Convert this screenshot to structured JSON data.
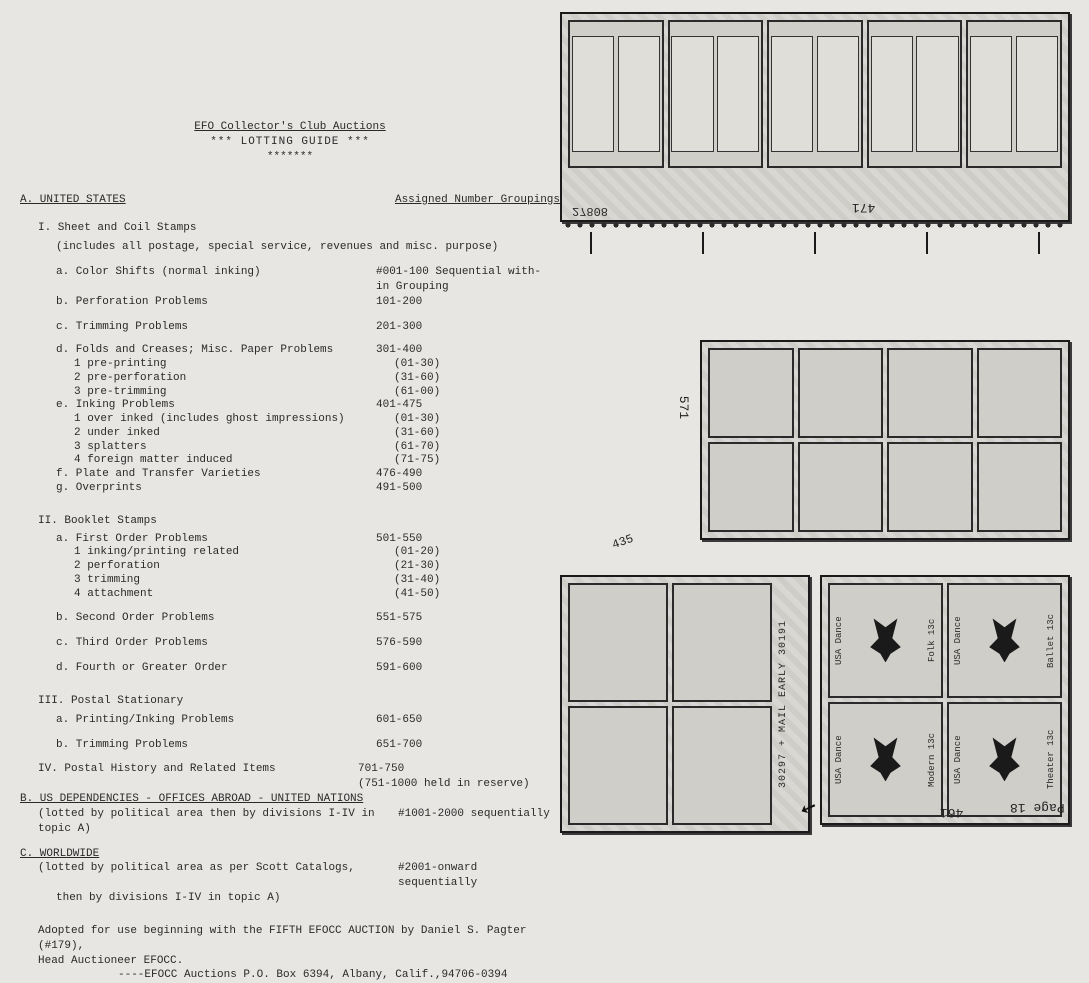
{
  "header": {
    "title1": "EFO Collector's Club Auctions",
    "title2": "*** LOTTING GUIDE ***",
    "stars": "*******"
  },
  "col_left_hdr": "A. UNITED STATES",
  "col_right_hdr": "Assigned Number Groupings",
  "sec_I": {
    "head": "I. Sheet and Coil Stamps",
    "sub": "(includes all postage, special service, revenues and misc. purpose)",
    "a_lbl": "a. Color Shifts (normal inking)",
    "a_num": "#001-100 Sequential with-",
    "a_cont": "in Grouping",
    "b_lbl": "b. Perforation Problems",
    "b_num": "101-200",
    "c_lbl": "c. Trimming Problems",
    "c_num": "201-300",
    "d_lbl": "d. Folds and Creases; Misc. Paper Problems",
    "d_num": "301-400",
    "d_list": [
      {
        "lbl": "1 pre-printing",
        "num": "(01-30)"
      },
      {
        "lbl": "2 pre-perforation",
        "num": "(31-60)"
      },
      {
        "lbl": "3 pre-trimming",
        "num": "(61-00)"
      }
    ],
    "e_lbl": "e. Inking Problems",
    "e_num": "401-475",
    "e_list": [
      {
        "lbl": "1 over inked (includes ghost impressions)",
        "num": "(01-30)"
      },
      {
        "lbl": "2 under inked",
        "num": "(31-60)"
      },
      {
        "lbl": "3 splatters",
        "num": "(61-70)"
      },
      {
        "lbl": "4 foreign matter induced",
        "num": "(71-75)"
      }
    ],
    "f_lbl": "f. Plate and Transfer Varieties",
    "f_num": "476-490",
    "g_lbl": "g. Overprints",
    "g_num": "491-500"
  },
  "sec_II": {
    "head": "II. Booklet Stamps",
    "a_lbl": "a. First Order Problems",
    "a_num": "501-550",
    "a_list": [
      {
        "lbl": "1 inking/printing related",
        "num": "(01-20)"
      },
      {
        "lbl": "2 perforation",
        "num": "(21-30)"
      },
      {
        "lbl": "3 trimming",
        "num": "(31-40)"
      },
      {
        "lbl": "4 attachment",
        "num": "(41-50)"
      }
    ],
    "b_lbl": "b. Second Order Problems",
    "b_num": "551-575",
    "c_lbl": "c. Third Order Problems",
    "c_num": "576-590",
    "d_lbl": "d. Fourth or Greater Order",
    "d_num": "591-600"
  },
  "sec_III": {
    "head": "III. Postal Stationary",
    "a_lbl": "a. Printing/Inking Problems",
    "a_num": "601-650",
    "b_lbl": "b. Trimming Problems",
    "b_num": "651-700"
  },
  "sec_IV": {
    "head": "IV. Postal History and Related Items",
    "num": "701-750",
    "reserve": "(751-1000 held in reserve)"
  },
  "sec_B": {
    "head": "B. US DEPENDENCIES - OFFICES ABROAD - UNITED NATIONS",
    "sub": "(lotted by political area then by divisions I-IV in topic A)",
    "num": "#1001-2000 sequentially"
  },
  "sec_C": {
    "head": "C. WORLDWIDE",
    "sub1": "(lotted by political area as per Scott Catalogs,",
    "sub2": "then by divisions I-IV in topic A)",
    "num": "#2001-onward sequentially"
  },
  "footer": {
    "line1": "Adopted for use beginning with the FIFTH EFOCC AUCTION by Daniel S. Pagter (#179),",
    "line2": "Head Auctioneer EFOCC.",
    "addr": "----EFOCC Auctions P.O. Box 6394, Albany, Calif.,94706-0394"
  },
  "stamps": {
    "top_plate": "27808",
    "botL_rail": "30297  + MAIL EARLY   30191",
    "dance": [
      "Folk",
      "Ballet",
      "Modern",
      "Theater"
    ],
    "dance_denom": "13c",
    "dance_country": "USA Dance"
  },
  "handwriting": {
    "h471": "471",
    "h571": "571",
    "h435": "435",
    "h461": "461",
    "page": "Page 18"
  }
}
